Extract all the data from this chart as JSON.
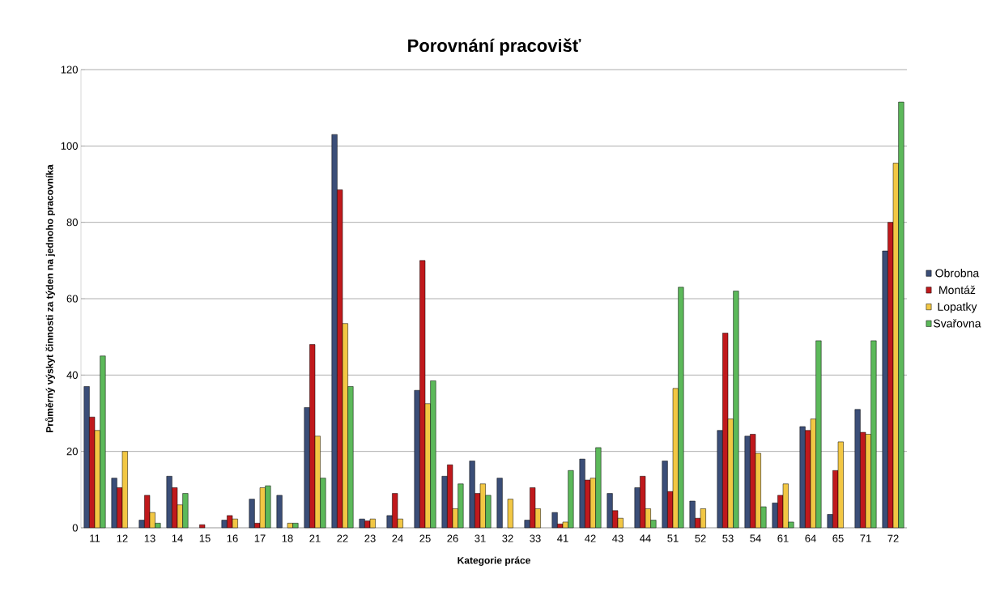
{
  "chart_data": {
    "type": "bar",
    "title": "Porovnání pracovišť",
    "xlabel": "Kategorie práce",
    "ylabel": "Průměrný výskyt činnosti za týden na jednoho pracovníka",
    "categories": [
      "11",
      "12",
      "13",
      "14",
      "15",
      "16",
      "17",
      "18",
      "21",
      "22",
      "23",
      "24",
      "25",
      "26",
      "31",
      "32",
      "33",
      "41",
      "42",
      "43",
      "44",
      "51",
      "52",
      "53",
      "54",
      "61",
      "64",
      "65",
      "71",
      "72"
    ],
    "series": [
      {
        "name": "Obrobna",
        "color": "#3b4e78",
        "values": [
          37,
          13,
          2,
          13.5,
          null,
          2,
          7.5,
          8.5,
          31.5,
          103,
          2.3,
          3.2,
          36,
          13.5,
          17.5,
          13,
          2,
          4,
          18,
          9,
          10.5,
          17.5,
          7,
          25.5,
          24,
          6.5,
          26.5,
          3.5,
          31,
          72.5
        ]
      },
      {
        "name": "Montáž",
        "color": "#c0191c",
        "values": [
          29,
          10.5,
          8.5,
          10.5,
          0.8,
          3.2,
          1.2,
          null,
          48,
          88.5,
          1.8,
          9,
          70,
          16.5,
          9,
          null,
          10.5,
          1,
          12.5,
          4.5,
          13.5,
          9.5,
          2.5,
          51,
          24.5,
          8.5,
          25.5,
          15,
          25,
          80
        ]
      },
      {
        "name": "Lopatky",
        "color": "#f2c744",
        "values": [
          25.5,
          20,
          4,
          6,
          null,
          2.3,
          10.5,
          1.2,
          24,
          53.5,
          2.3,
          2.3,
          32.5,
          5,
          11.5,
          7.5,
          5,
          1.5,
          13,
          2.5,
          5,
          36.5,
          5,
          28.5,
          19.5,
          11.5,
          28.5,
          22.5,
          24.5,
          95.5
        ]
      },
      {
        "name": "Svařovna",
        "color": "#5cb95a",
        "values": [
          45,
          null,
          1.2,
          9,
          null,
          null,
          11,
          1.2,
          13,
          37,
          null,
          null,
          38.5,
          11.5,
          8.5,
          null,
          null,
          15,
          21,
          null,
          2,
          63,
          null,
          62,
          5.5,
          1.5,
          49,
          null,
          49,
          111.5
        ]
      }
    ],
    "ylim": [
      0,
      120
    ],
    "yticks": [
      0,
      20,
      40,
      60,
      80,
      100,
      120
    ],
    "grid": "y",
    "legend": "right"
  }
}
